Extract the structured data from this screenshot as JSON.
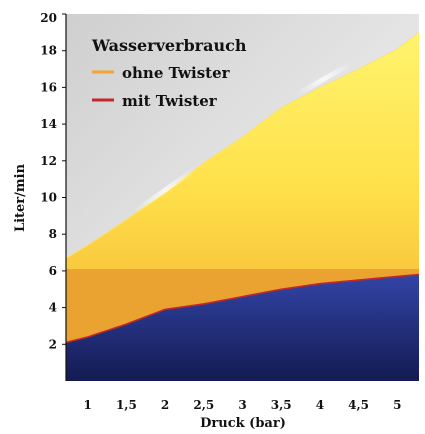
{
  "chart_data": {
    "type": "area",
    "title": "",
    "xlabel": "Druck (bar)",
    "ylabel": "Liter/min",
    "x_ticks": [
      "1",
      "1,5",
      "2",
      "2,5",
      "3",
      "3,5",
      "4",
      "4,5",
      "5"
    ],
    "x_tick_values": [
      1,
      1.5,
      2,
      2.5,
      3,
      3.5,
      4,
      4.5,
      5
    ],
    "y_ticks": [
      "2",
      "4",
      "6",
      "8",
      "10",
      "12",
      "14",
      "16",
      "18",
      "20"
    ],
    "y_tick_values": [
      2,
      4,
      6,
      8,
      10,
      12,
      14,
      16,
      18,
      20
    ],
    "xlim": [
      0.72,
      5.28
    ],
    "ylim": [
      0,
      20
    ],
    "grid": false,
    "legend": {
      "title": "Wasserverbrauch",
      "placement": "top-left"
    },
    "series": [
      {
        "name": "ohne Twister",
        "color": "#f2a530",
        "x": [
          0.72,
          1,
          1.5,
          2,
          2.5,
          3,
          3.5,
          4,
          4.5,
          5,
          5.28
        ],
        "values": [
          6.7,
          7.4,
          8.8,
          10.3,
          11.9,
          13.3,
          14.9,
          16.0,
          17.0,
          18.1,
          19.0
        ]
      },
      {
        "name": "mit Twister",
        "color": "#c0282a",
        "x": [
          0.72,
          1,
          1.5,
          2,
          2.5,
          3,
          3.5,
          4,
          4.5,
          5,
          5.28
        ],
        "values": [
          2.1,
          2.4,
          3.1,
          3.9,
          4.2,
          4.6,
          5.0,
          5.3,
          5.5,
          5.7,
          5.8
        ]
      }
    ],
    "colors": {
      "background_top": "#d9d9d9",
      "area_upper_light": "#fff27a",
      "area_upper_dark": "#f0b838",
      "area_lower_band": "#e8a030",
      "area_blue_light": "#3140a0",
      "area_blue_dark": "#141e5a"
    }
  }
}
